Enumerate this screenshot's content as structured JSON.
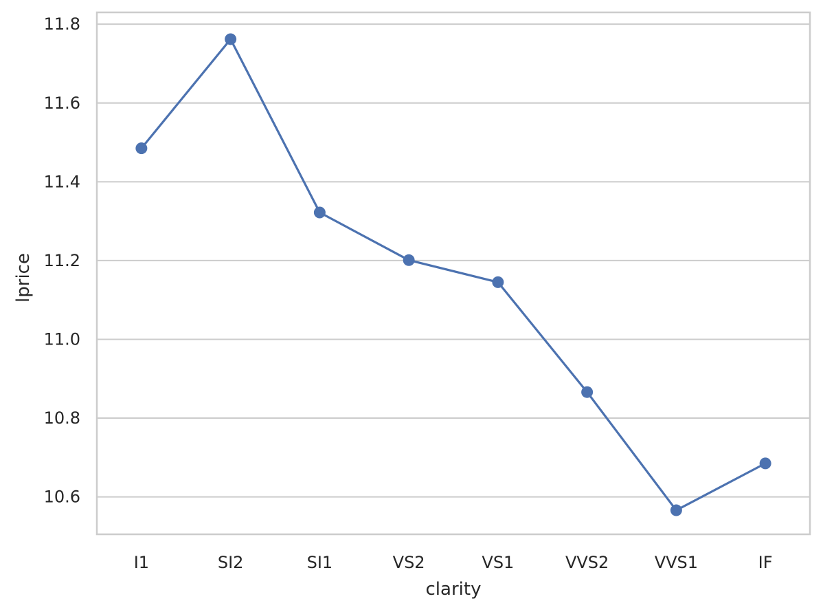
{
  "chart_data": {
    "type": "line",
    "title": "",
    "xlabel": "clarity",
    "ylabel": "lprice",
    "categories": [
      "I1",
      "SI2",
      "SI1",
      "VS2",
      "VS1",
      "VVS2",
      "VVS1",
      "IF"
    ],
    "series": [
      {
        "values": [
          11.485,
          11.762,
          11.322,
          11.201,
          11.145,
          10.866,
          10.566,
          10.685
        ]
      }
    ],
    "ylim": [
      10.505,
      11.83
    ],
    "yticks": [
      "10.6",
      "10.8",
      "11.0",
      "11.2",
      "11.4",
      "11.6",
      "11.8"
    ],
    "grid": "horizontal",
    "legend": "none",
    "colors": {
      "line": "#4c72b0",
      "grid": "#cccccc",
      "frame": "#cccccc",
      "text": "#262626"
    }
  }
}
